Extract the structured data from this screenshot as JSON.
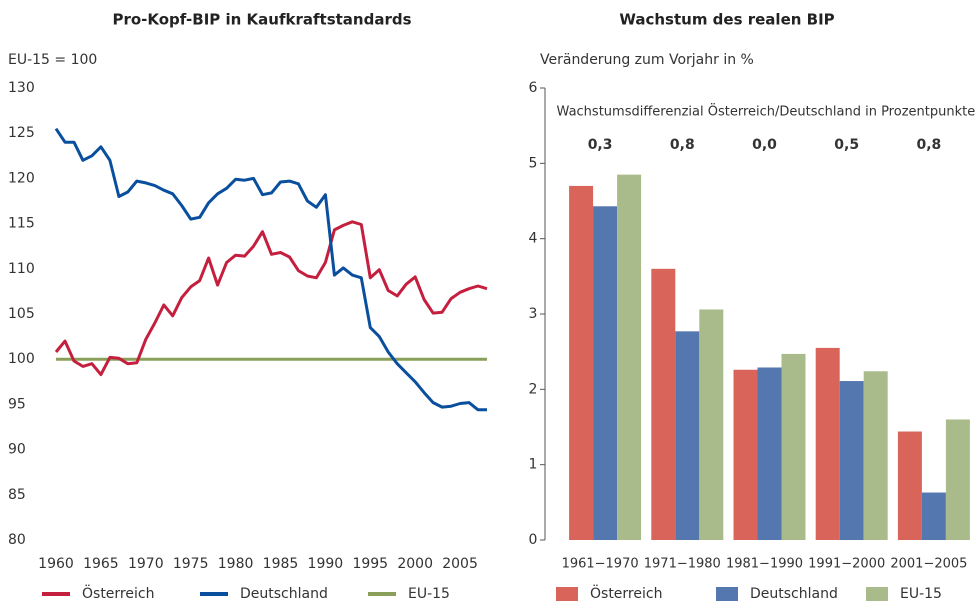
{
  "chart_data": [
    {
      "type": "line",
      "title": "Pro-Kopf-BIP in Kaufkraftstandards",
      "y_label": "EU-15 = 100",
      "x": [
        1960,
        1961,
        1962,
        1963,
        1964,
        1965,
        1966,
        1967,
        1968,
        1969,
        1970,
        1971,
        1972,
        1973,
        1974,
        1975,
        1976,
        1977,
        1978,
        1979,
        1980,
        1981,
        1982,
        1983,
        1984,
        1985,
        1986,
        1987,
        1988,
        1989,
        1990,
        1991,
        1992,
        1993,
        1994,
        1995,
        1996,
        1997,
        1998,
        1999,
        2000,
        2001,
        2002,
        2003,
        2004,
        2005,
        2006,
        2007,
        2008
      ],
      "series": [
        {
          "name": "Österreich",
          "color": "#c41f3e",
          "values": [
            100.8,
            102,
            99.8,
            99.2,
            99.5,
            98.3,
            100.2,
            100.1,
            99.5,
            99.6,
            102.2,
            104,
            106,
            104.8,
            106.8,
            108,
            108.7,
            111.2,
            108.2,
            110.7,
            111.5,
            111.4,
            112.5,
            114.1,
            111.6,
            111.8,
            111.3,
            109.8,
            109.2,
            109,
            110.7,
            114.3,
            114.8,
            115.2,
            114.9,
            109,
            109.9,
            107.6,
            107,
            108.3,
            109.1,
            106.6,
            105.1,
            105.2,
            106.7,
            107.4,
            107.8,
            108.1,
            107.8
          ]
        },
        {
          "name": "Deutschland",
          "color": "#0a4f9e",
          "values": [
            125.5,
            124,
            124,
            122,
            122.5,
            123.5,
            122,
            118,
            118.5,
            119.7,
            119.5,
            119.2,
            118.7,
            118.3,
            117,
            115.5,
            115.7,
            117.3,
            118.3,
            118.9,
            119.9,
            119.8,
            120,
            118.2,
            118.4,
            119.6,
            119.7,
            119.4,
            117.5,
            116.8,
            118.2,
            109.3,
            110.1,
            109.3,
            109,
            103.5,
            102.5,
            100.8,
            99.5,
            98.5,
            97.5,
            96.3,
            95.2,
            94.7,
            94.8,
            95.1,
            95.2,
            94.4,
            94.4
          ]
        },
        {
          "name": "EU-15",
          "color": "#8aa05a",
          "values": [
            100,
            100,
            100,
            100,
            100,
            100,
            100,
            100,
            100,
            100,
            100,
            100,
            100,
            100,
            100,
            100,
            100,
            100,
            100,
            100,
            100,
            100,
            100,
            100,
            100,
            100,
            100,
            100,
            100,
            100,
            100,
            100,
            100,
            100,
            100,
            100,
            100,
            100,
            100,
            100,
            100,
            100,
            100,
            100,
            100,
            100,
            100,
            100,
            100
          ]
        }
      ],
      "xlim": [
        1960,
        2008
      ],
      "xticks": [
        1960,
        1965,
        1970,
        1975,
        1980,
        1985,
        1990,
        1995,
        2000,
        2005
      ],
      "ylim": [
        80,
        130
      ],
      "yticks": [
        80,
        85,
        90,
        95,
        100,
        105,
        110,
        115,
        120,
        125,
        130
      ]
    },
    {
      "type": "bar",
      "title": "Wachstum des realen BIP",
      "y_label": "Veränderung zum Vorjahr in %",
      "annotation": "Wachstumsdifferenzial Österreich/Deutschland in Prozentpunkten",
      "differentials": [
        {
          "value": 0.3,
          "label": "0,3"
        },
        {
          "value": 0.8,
          "label": "0,8"
        },
        {
          "value": 0.0,
          "label": "0,0"
        },
        {
          "value": 0.5,
          "label": "0,5"
        },
        {
          "value": 0.8,
          "label": "0,8"
        }
      ],
      "categories": [
        "1961−1970",
        "1971−1980",
        "1981−1990",
        "1991−2000",
        "2001−2005"
      ],
      "series": [
        {
          "name": "Österreich",
          "color": "#d9645a",
          "values": [
            4.7,
            3.6,
            2.26,
            2.55,
            1.44
          ]
        },
        {
          "name": "Deutschland",
          "color": "#5577b0",
          "values": [
            4.43,
            2.77,
            2.29,
            2.11,
            0.63
          ]
        },
        {
          "name": "EU-15",
          "color": "#a9bb8a",
          "values": [
            4.85,
            3.06,
            2.47,
            2.24,
            1.6
          ]
        }
      ],
      "ylim": [
        0,
        6
      ],
      "yticks": [
        0,
        1,
        2,
        3,
        4,
        5,
        6
      ]
    }
  ]
}
